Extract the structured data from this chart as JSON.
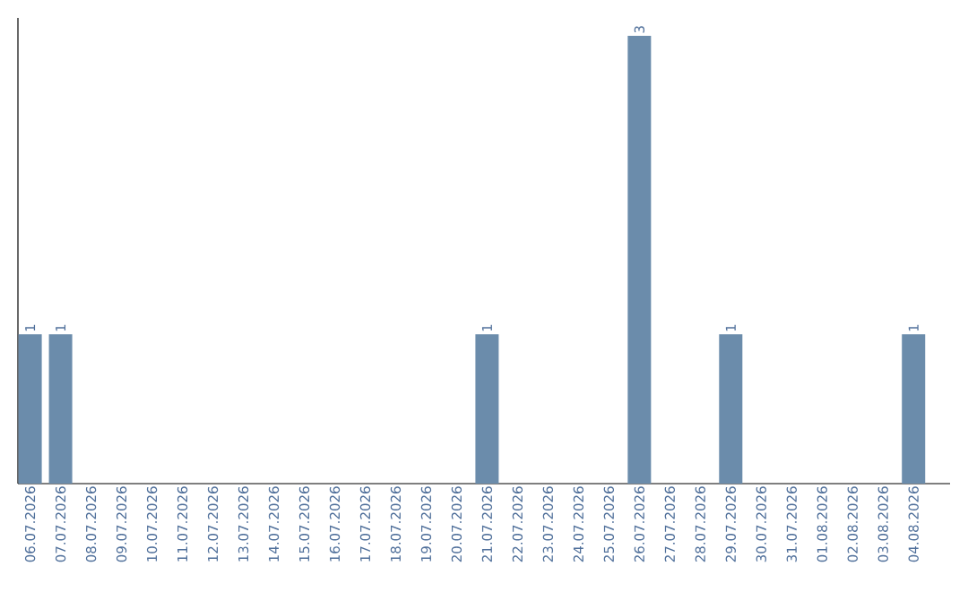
{
  "chart_data": {
    "type": "bar",
    "categories": [
      "06.07.2026",
      "07.07.2026",
      "08.07.2026",
      "09.07.2026",
      "10.07.2026",
      "11.07.2026",
      "12.07.2026",
      "13.07.2026",
      "14.07.2026",
      "15.07.2026",
      "16.07.2026",
      "17.07.2026",
      "18.07.2026",
      "19.07.2026",
      "20.07.2026",
      "21.07.2026",
      "22.07.2026",
      "23.07.2026",
      "24.07.2026",
      "25.07.2026",
      "26.07.2026",
      "27.07.2026",
      "28.07.2026",
      "29.07.2026",
      "30.07.2026",
      "31.07.2026",
      "01.08.2026",
      "02.08.2026",
      "03.08.2026",
      "04.08.2026"
    ],
    "values": [
      1,
      1,
      0,
      0,
      0,
      0,
      0,
      0,
      0,
      0,
      0,
      0,
      0,
      0,
      0,
      1,
      0,
      0,
      0,
      0,
      3,
      0,
      0,
      1,
      0,
      0,
      0,
      0,
      0,
      1
    ],
    "value_labels": [
      "1",
      "1",
      null,
      null,
      null,
      null,
      null,
      null,
      null,
      null,
      null,
      null,
      null,
      null,
      null,
      "1",
      null,
      null,
      null,
      null,
      "3",
      null,
      null,
      "1",
      null,
      null,
      null,
      null,
      null,
      "1"
    ],
    "color": "#6b8cab"
  }
}
